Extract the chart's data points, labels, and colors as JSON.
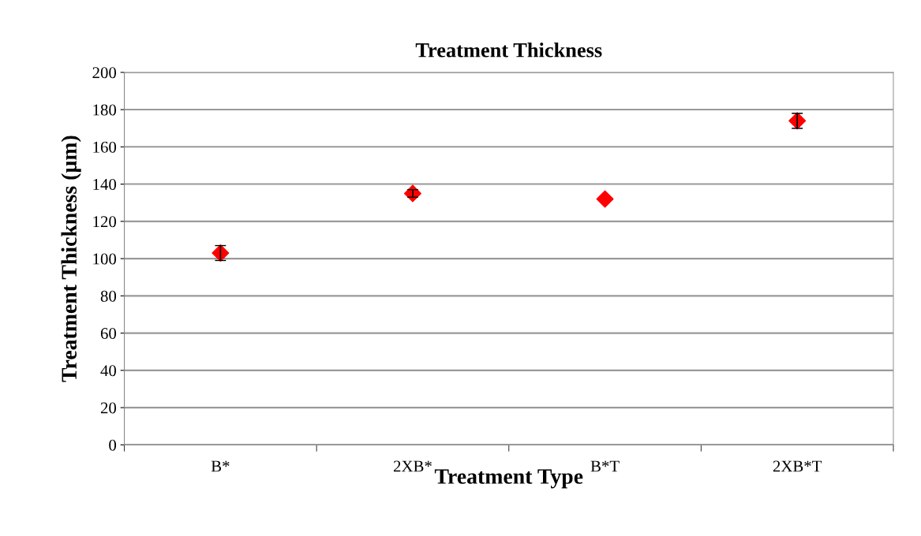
{
  "chart_data": {
    "type": "scatter",
    "title": "Treatment Thickness",
    "xlabel": "Treatment Type",
    "ylabel": "Treatment Thickness (µm)",
    "categories": [
      "B*",
      "2XB*",
      "B*T",
      "2XB*T"
    ],
    "series": [
      {
        "color": "#ff0000",
        "values": [
          103,
          135,
          132,
          174
        ],
        "errors": [
          4,
          2,
          null,
          4
        ]
      }
    ],
    "ylim": [
      0,
      200
    ],
    "yticks": [
      0,
      20,
      40,
      60,
      80,
      100,
      120,
      140,
      160,
      180,
      200
    ],
    "grid": "y",
    "marker": "diamond"
  }
}
